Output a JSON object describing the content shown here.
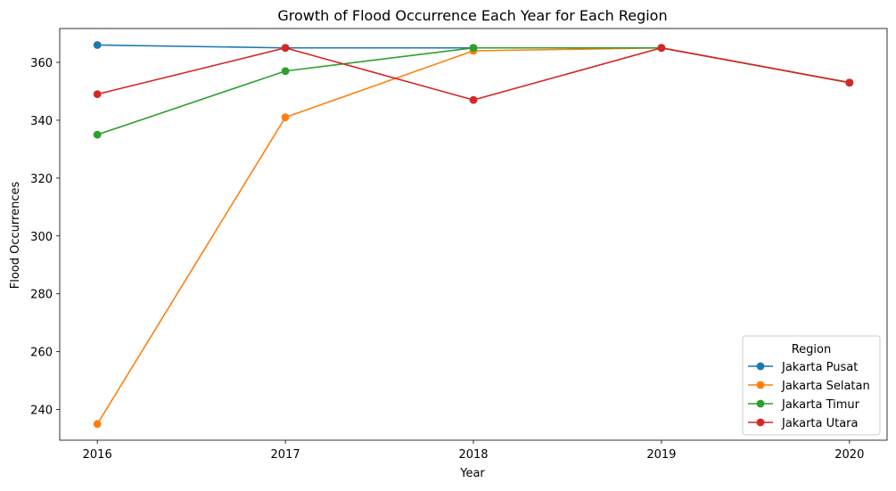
{
  "chart_data": {
    "type": "line",
    "title": "Growth of Flood Occurrence Each Year for Each Region",
    "xlabel": "Year",
    "ylabel": "Flood Occurrences",
    "x": [
      2016,
      2017,
      2018,
      2019,
      2020
    ],
    "x_tick_labels": [
      "2016",
      "2017",
      "2018",
      "2019",
      "2020"
    ],
    "y_ticks": [
      240,
      260,
      280,
      300,
      320,
      340,
      360
    ],
    "y_tick_labels": [
      "240",
      "260",
      "280",
      "300",
      "320",
      "340",
      "360"
    ],
    "ylim": [
      229.4,
      371.7
    ],
    "xlim": [
      2015.8,
      2020.2
    ],
    "grid": false,
    "legend": {
      "title": "Region",
      "placement": "lower-right"
    },
    "series": [
      {
        "name": "Jakarta Pusat",
        "color": "#1f77b4",
        "values": [
          366,
          365,
          365,
          365,
          353
        ]
      },
      {
        "name": "Jakarta Selatan",
        "color": "#ff7f0e",
        "values": [
          235,
          341,
          364,
          365,
          353
        ]
      },
      {
        "name": "Jakarta Timur",
        "color": "#2ca02c",
        "values": [
          335,
          357,
          365,
          365,
          353
        ]
      },
      {
        "name": "Jakarta Utara",
        "color": "#d62728",
        "values": [
          349,
          365,
          347,
          365,
          353
        ]
      }
    ]
  }
}
